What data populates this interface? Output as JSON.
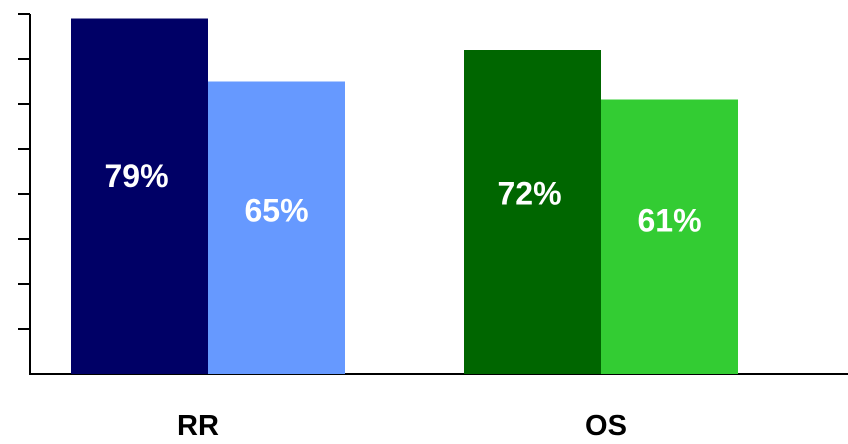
{
  "chart_data": {
    "type": "bar",
    "categories": [
      "RR",
      "OS"
    ],
    "series": [
      {
        "values": [
          79,
          72
        ],
        "colors": [
          "#000066",
          "#006600"
        ],
        "labels": [
          "79%",
          "72%"
        ]
      },
      {
        "values": [
          65,
          61
        ],
        "colors": [
          "#6699FF",
          "#33CC33"
        ],
        "labels": [
          "65%",
          "61%"
        ]
      }
    ],
    "title": "",
    "xlabel": "",
    "ylabel": "",
    "ylim": [
      0,
      80
    ],
    "y_tick_step": 10,
    "y_tick_labels_shown": false,
    "grid": false,
    "legend": "none"
  }
}
